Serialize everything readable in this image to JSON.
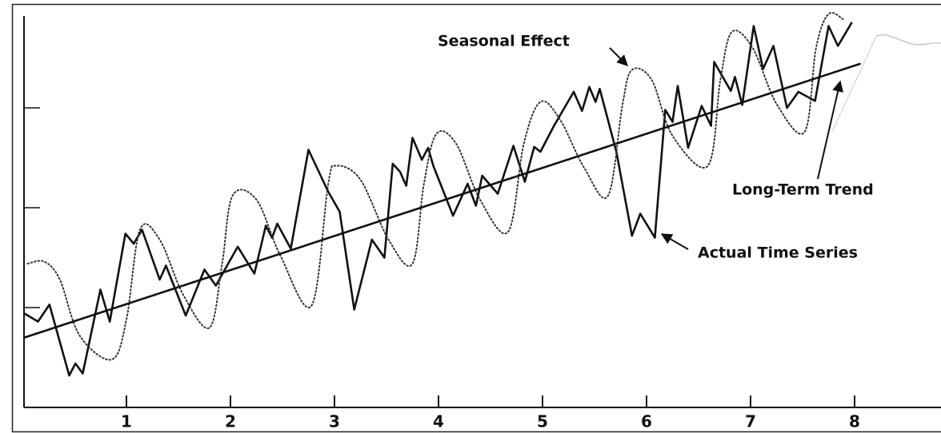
{
  "chart_data": {
    "type": "line",
    "xlim": [
      0,
      8.8
    ],
    "xticks": [
      1,
      2,
      3,
      4,
      5,
      6,
      7,
      8
    ],
    "ylim": [
      0,
      4
    ],
    "yticks": [
      1,
      2,
      3
    ],
    "series": [
      {
        "name": "Actual Time Series",
        "color": "#111111",
        "style": "solid",
        "smooth": false,
        "x": [
          0.02,
          0.15,
          0.26,
          0.45,
          0.51,
          0.58,
          0.75,
          0.84,
          0.99,
          1.07,
          1.15,
          1.32,
          1.38,
          1.57,
          1.75,
          1.86,
          2.07,
          2.23,
          2.34,
          2.4,
          2.45,
          2.58,
          2.75,
          2.94,
          3.05,
          3.19,
          3.36,
          3.48,
          3.56,
          3.63,
          3.69,
          3.75,
          3.84,
          3.9,
          3.95,
          4.14,
          4.28,
          4.36,
          4.42,
          4.57,
          4.72,
          4.83,
          4.92,
          4.98,
          5.11,
          5.3,
          5.38,
          5.45,
          5.51,
          5.55,
          5.71,
          5.86,
          5.94,
          6.08,
          6.18,
          6.25,
          6.3,
          6.4,
          6.53,
          6.62,
          6.65,
          6.81,
          6.85,
          6.92,
          7.03,
          7.12,
          7.22,
          7.35,
          7.46,
          7.62,
          7.75,
          7.84,
          7.97
        ],
        "values": [
          0.94,
          0.86,
          1.03,
          0.32,
          0.44,
          0.34,
          1.18,
          0.86,
          1.74,
          1.64,
          1.78,
          1.28,
          1.42,
          0.92,
          1.38,
          1.22,
          1.61,
          1.34,
          1.82,
          1.7,
          1.84,
          1.59,
          2.58,
          2.16,
          1.96,
          0.98,
          1.68,
          1.5,
          2.44,
          2.36,
          2.22,
          2.7,
          2.48,
          2.6,
          2.42,
          1.92,
          2.24,
          2.02,
          2.32,
          2.14,
          2.62,
          2.26,
          2.61,
          2.56,
          2.82,
          3.16,
          2.97,
          3.21,
          3.06,
          3.19,
          2.56,
          1.72,
          1.94,
          1.7,
          2.98,
          2.86,
          3.22,
          2.6,
          3.02,
          2.82,
          3.46,
          3.17,
          3.31,
          3.03,
          3.82,
          3.39,
          3.62,
          3.0,
          3.16,
          3.07,
          3.82,
          3.62,
          3.85
        ]
      },
      {
        "name": "Seasonal Effect",
        "color": "#333333",
        "style": "dotted",
        "smooth": true,
        "x": [
          0.05,
          0.21,
          0.36,
          0.55,
          0.86,
          1.0,
          1.13,
          1.32,
          1.55,
          1.8,
          1.92,
          2.02,
          2.25,
          2.48,
          2.78,
          2.94,
          3.02,
          3.25,
          3.52,
          3.75,
          3.86,
          3.98,
          4.17,
          4.4,
          4.67,
          4.82,
          4.98,
          5.17,
          5.4,
          5.63,
          5.77,
          5.86,
          6.05,
          6.25,
          6.59,
          6.71,
          6.82,
          7.02,
          7.25,
          7.52,
          7.63,
          7.75,
          7.9
        ],
        "values": [
          1.44,
          1.46,
          1.28,
          0.72,
          0.48,
          0.88,
          1.78,
          1.68,
          1.12,
          0.8,
          1.44,
          2.12,
          2.08,
          1.52,
          1.02,
          2.24,
          2.42,
          2.28,
          1.68,
          1.44,
          2.24,
          2.74,
          2.64,
          2.08,
          1.76,
          2.64,
          3.06,
          2.88,
          2.4,
          2.12,
          3.04,
          3.38,
          3.28,
          2.72,
          2.42,
          3.28,
          3.76,
          3.6,
          3.04,
          2.76,
          3.6,
          3.94,
          3.88
        ]
      },
      {
        "name": "Long-Term Trend",
        "color": "#111111",
        "style": "solid",
        "smooth": false,
        "x": [
          0.02,
          8.05
        ],
        "values": [
          0.7,
          3.44
        ]
      }
    ]
  }
}
